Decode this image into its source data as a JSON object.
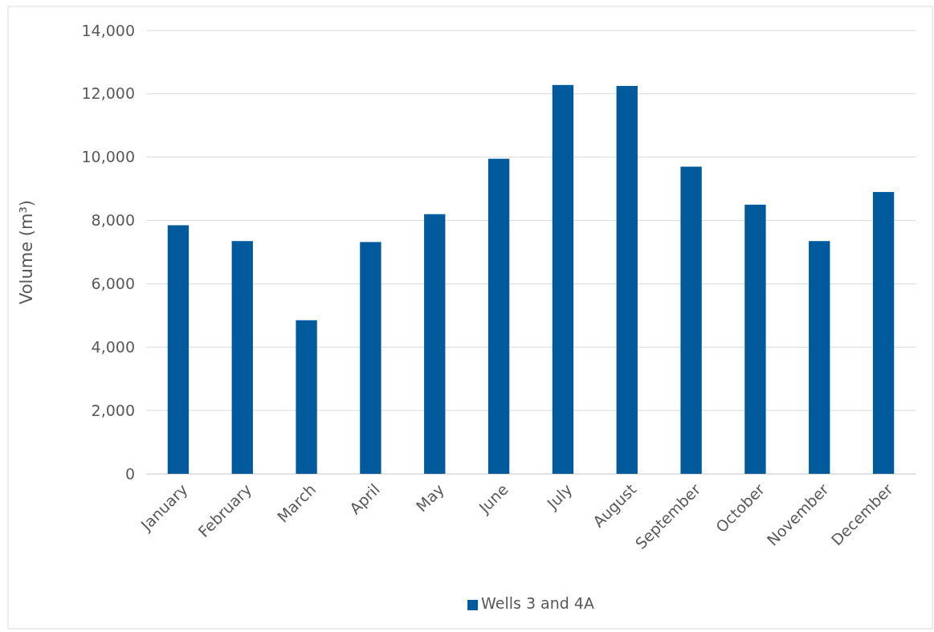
{
  "chart_data": {
    "type": "bar",
    "ylabel": "Volume (m³)",
    "categories": [
      "January",
      "February",
      "March",
      "April",
      "May",
      "June",
      "July",
      "August",
      "September",
      "October",
      "November",
      "December"
    ],
    "series": [
      {
        "name": "Wells 3 and 4A",
        "color": "#005a9c",
        "values": [
          7850,
          7350,
          4850,
          7320,
          8200,
          9950,
          12280,
          12250,
          9700,
          8500,
          7350,
          8900
        ]
      }
    ],
    "ylim": [
      0,
      14000
    ],
    "yticks": [
      {
        "value": 0,
        "label": "0"
      },
      {
        "value": 2000,
        "label": "2,000"
      },
      {
        "value": 4000,
        "label": "4,000"
      },
      {
        "value": 6000,
        "label": "6,000"
      },
      {
        "value": 8000,
        "label": "8,000"
      },
      {
        "value": 10000,
        "label": "10,000"
      },
      {
        "value": 12000,
        "label": "12,000"
      },
      {
        "value": 14000,
        "label": "14,000"
      }
    ],
    "grid": "y",
    "legend": "bottom"
  }
}
